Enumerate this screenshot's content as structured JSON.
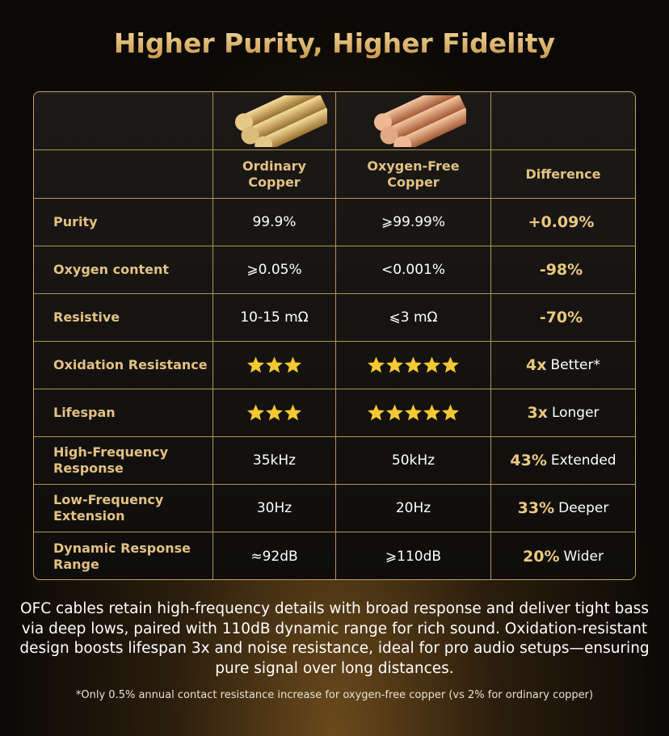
{
  "title": "Higher Purity, Higher Fidelity",
  "table": {
    "headers": [
      "Ordinary Copper",
      "Oxygen-Free Copper",
      "Difference"
    ],
    "rows": [
      {
        "label": "Purity",
        "ordinary": "99.9%",
        "ofc": "⩾99.99%",
        "difference": {
          "emph": "+0.09%"
        }
      },
      {
        "label": "Oxygen content",
        "ordinary": "⩾0.05%",
        "ofc": "<0.001%",
        "difference": {
          "emph": "-98%"
        }
      },
      {
        "label": "Resistive",
        "ordinary": "10-15 mΩ",
        "ofc": "⩽3 mΩ",
        "difference": {
          "emph": "-70%"
        }
      },
      {
        "label": "Oxidation Resistance",
        "ordinary": {
          "stars": 3
        },
        "ofc": {
          "stars": 5
        },
        "difference": {
          "emph": "4x",
          "text": "Better*"
        }
      },
      {
        "label": "Lifespan",
        "ordinary": {
          "stars": 3
        },
        "ofc": {
          "stars": 5
        },
        "difference": {
          "emph": "3x",
          "text": "Longer"
        }
      },
      {
        "label": "High-Frequency Response",
        "ordinary": "35kHz",
        "ofc": "50kHz",
        "difference": {
          "emph": "43%",
          "text": "Extended"
        }
      },
      {
        "label": "Low-Frequency Extension",
        "ordinary": "30Hz",
        "ofc": "20Hz",
        "difference": {
          "emph": "33%",
          "text": "Deeper"
        }
      },
      {
        "label": "Dynamic Response Range",
        "ordinary": "≈92dB",
        "ofc": "⩾110dB",
        "difference": {
          "emph": "20%",
          "text": "Wider"
        }
      }
    ]
  },
  "description": "OFC cables retain high-frequency details with broad response and deliver tight bass via deep lows, paired with 110dB dynamic range for rich sound. Oxidation-resistant design boosts lifespan 3x and noise resistance, ideal for pro audio setups—ensuring pure signal over long distances.",
  "footnote": "*Only 0.5% annual contact resistance increase for oxygen-free copper (vs 2% for ordinary copper)"
}
